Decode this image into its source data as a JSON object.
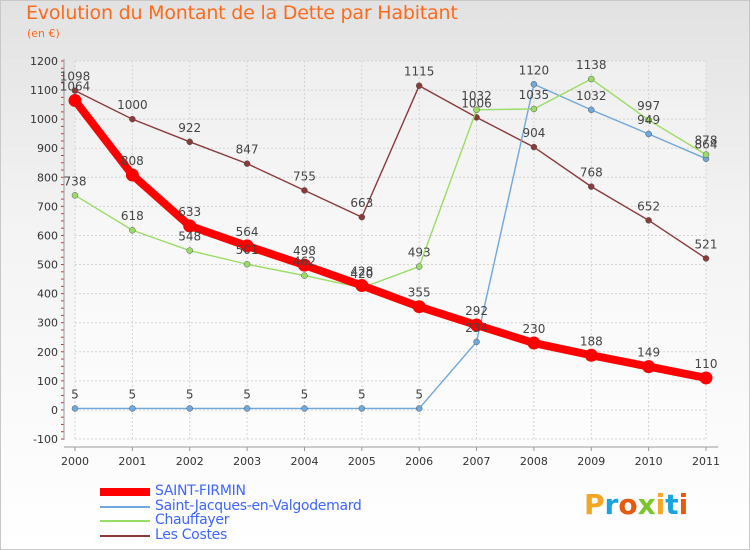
{
  "header": {
    "title": "Evolution du Montant de la Dette par Habitant",
    "subtitle": "(en €)"
  },
  "logo": {
    "text": "Proxiti",
    "letter_colors": [
      "#f5a623",
      "#1aa3dc",
      "#e8590c",
      "#7cc62d",
      "#f5a623",
      "#1aa3dc",
      "#e8590c"
    ]
  },
  "chart_data": {
    "type": "line",
    "title": "Evolution du Montant de la Dette par Habitant",
    "subtitle": "(en €)",
    "xlabel": "",
    "ylabel": "",
    "x": [
      "2000",
      "2001",
      "2002",
      "2003",
      "2004",
      "2005",
      "2006",
      "2007",
      "2008",
      "2009",
      "2010",
      "2011"
    ],
    "ylim": [
      -100,
      1200
    ],
    "yticks": [
      "-100",
      "0",
      "100",
      "200",
      "300",
      "400",
      "500",
      "600",
      "700",
      "800",
      "900",
      "1000",
      "1100",
      "1200"
    ],
    "grid": true,
    "legend_position": "bottom-left",
    "series": [
      {
        "name": "SAINT-FIRMIN",
        "color": "#ff0000",
        "values": [
          1064,
          808,
          633,
          564,
          498,
          428,
          355,
          292,
          230,
          188,
          149,
          110
        ],
        "labels": [
          "1064",
          "808",
          "633",
          "564",
          "498",
          "428",
          "355",
          "292",
          "230",
          "188",
          "149",
          "110"
        ]
      },
      {
        "name": "Saint-Jacques-en-Valgodemard",
        "color": "#6fa8dc",
        "values": [
          5,
          5,
          5,
          5,
          5,
          5,
          5,
          234,
          1120,
          1032,
          949,
          864
        ],
        "labels": [
          "5",
          "5",
          "5",
          "5",
          "5",
          "5",
          "5",
          "234",
          "1120",
          "1032",
          "949",
          "864"
        ]
      },
      {
        "name": "Chauffayer",
        "color": "#99dd66",
        "values": [
          738,
          618,
          548,
          501,
          462,
          420,
          493,
          1032,
          1035,
          1138,
          997,
          878
        ],
        "labels": [
          "738",
          "618",
          "548",
          "501",
          "462",
          "420",
          "493",
          "1032",
          "1035",
          "1138",
          "997",
          "878"
        ]
      },
      {
        "name": "Les Costes",
        "color": "#8b3a3a",
        "values": [
          1098,
          1000,
          922,
          847,
          755,
          663,
          1115,
          1006,
          904,
          768,
          652,
          521
        ],
        "labels": [
          "1098",
          "1000",
          "922",
          "847",
          "755",
          "663",
          "1115",
          "1006",
          "904",
          "768",
          "652",
          "521"
        ]
      }
    ]
  }
}
